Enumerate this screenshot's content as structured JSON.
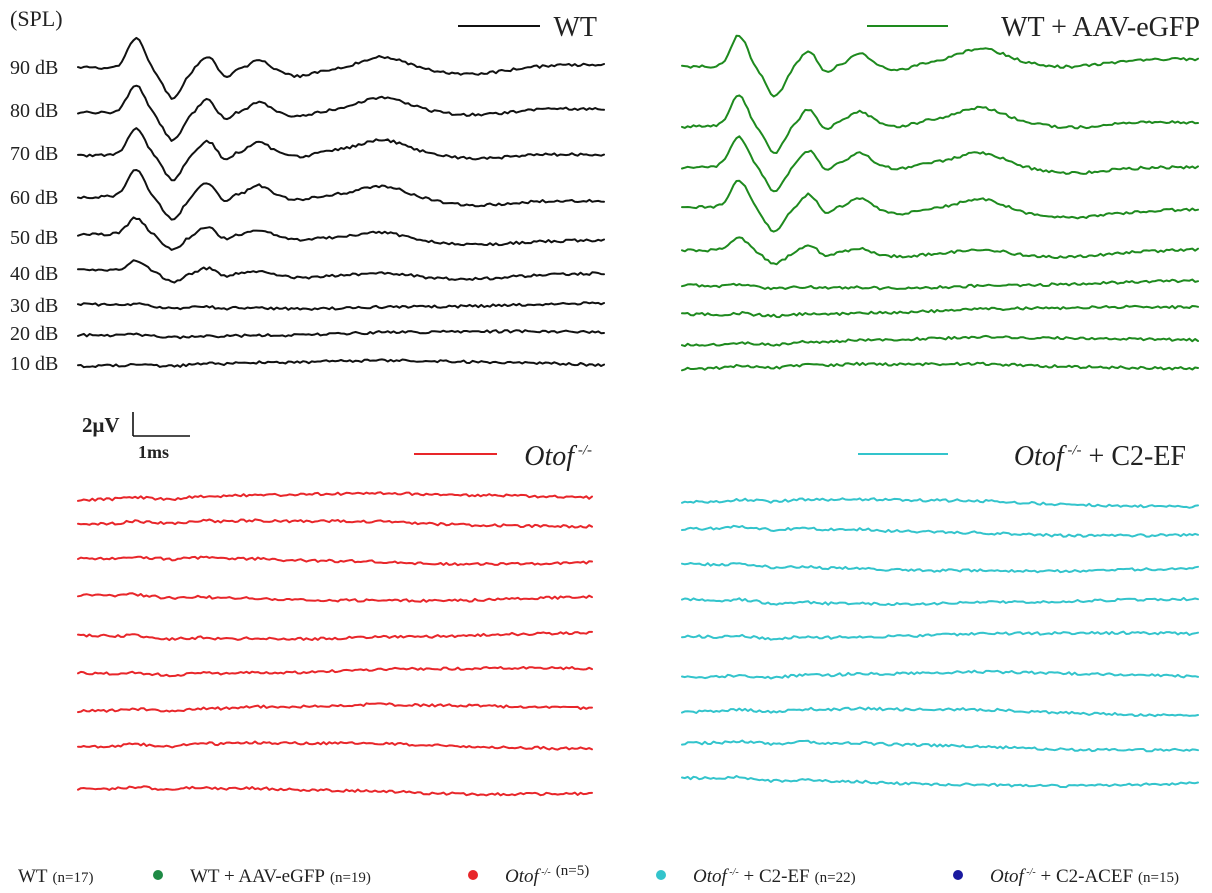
{
  "chart_data": {
    "type": "line",
    "spl_header": "(SPL)",
    "levels": [
      "90 dB",
      "80 dB",
      "70 dB",
      "60 dB",
      "50 dB",
      "40 dB",
      "30 dB",
      "20 dB",
      "10 dB"
    ],
    "scale_bar": {
      "amplitude_label": "2μV",
      "time_label": "1ms",
      "amplitude_uV": 2,
      "time_ms": 1
    },
    "panels": [
      {
        "id": "wt",
        "legend": "WT",
        "legend_sup": "",
        "legend_suffix": "",
        "color": "#111111",
        "amplitudes": [
          1.0,
          0.95,
          0.9,
          0.85,
          0.55,
          0.35,
          0.06,
          0.05,
          0.05
        ]
      },
      {
        "id": "wt-aav-egfp",
        "legend": "WT + AAV-eGFP",
        "legend_sup": "",
        "legend_suffix": "",
        "color": "#1e8a1e",
        "amplitudes": [
          1.05,
          1.0,
          0.95,
          0.9,
          0.45,
          0.06,
          0.05,
          0.05,
          0.05
        ]
      },
      {
        "id": "otof-ko",
        "legend": "Otof",
        "legend_sup": "-/-",
        "legend_suffix": "",
        "color": "#e8262a",
        "amplitudes": [
          0.05,
          0.05,
          0.05,
          0.05,
          0.05,
          0.05,
          0.05,
          0.05,
          0.05
        ]
      },
      {
        "id": "otof-ko-c2ef",
        "legend": "Otof",
        "legend_sup": "-/-",
        "legend_suffix": " + C2-EF",
        "color": "#33c4cc",
        "amplitudes": [
          0.05,
          0.05,
          0.05,
          0.05,
          0.05,
          0.05,
          0.05,
          0.05,
          0.05
        ]
      }
    ],
    "bottom_legend": [
      {
        "name": "WT",
        "sup": "",
        "suffix": "",
        "n": "(n=17)",
        "marker": "",
        "marker_color": ""
      },
      {
        "name": "WT + AAV-eGFP",
        "sup": "",
        "suffix": "",
        "n": "(n=19)",
        "marker": "circle",
        "marker_color": "#1e8a45"
      },
      {
        "name": "Otof",
        "sup": "-/-",
        "suffix": "",
        "n": "(n=5)",
        "marker": "circle",
        "marker_color": "#e8262a"
      },
      {
        "name": "Otof",
        "sup": "-/-",
        "suffix": " + C2-EF",
        "n": "(n=22)",
        "marker": "circle",
        "marker_color": "#33c4cc"
      },
      {
        "name": "Otof",
        "sup": "-/-",
        "suffix": " + C2-ACEF",
        "n": "(n=15)",
        "marker": "circle",
        "marker_color": "#1a1aa0"
      }
    ]
  }
}
